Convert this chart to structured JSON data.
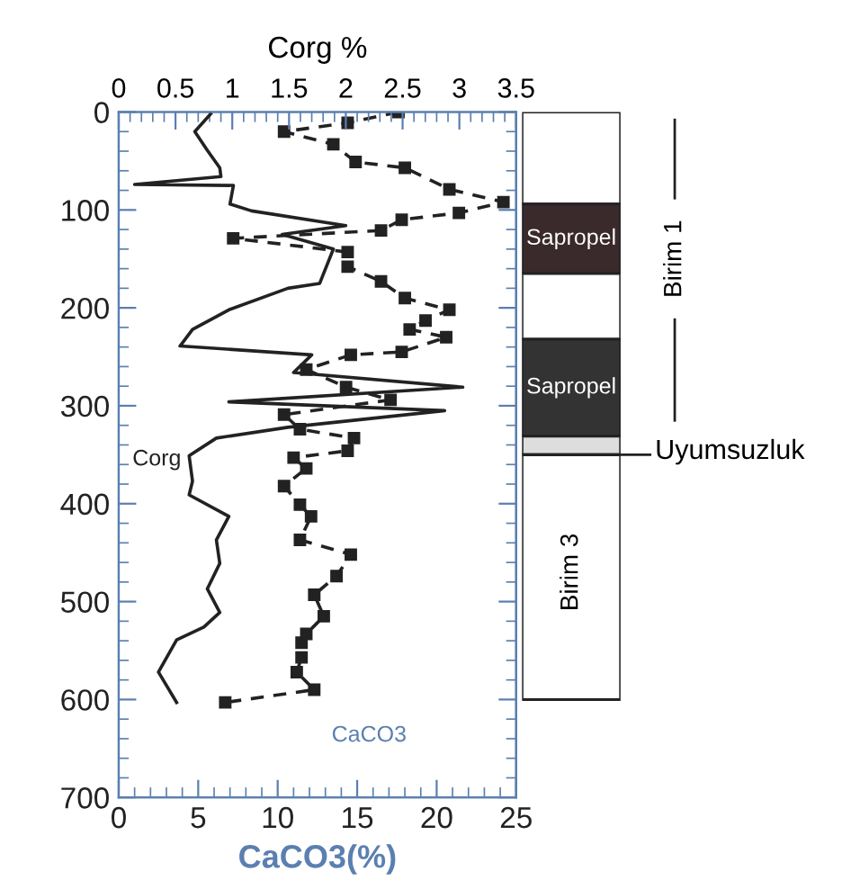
{
  "chart_data": [
    {
      "type": "line",
      "orientation": "horizontal",
      "xlabel": "CaCO3(%)",
      "x2label": "Corg %",
      "xlim": [
        0,
        25
      ],
      "xticks": [
        0,
        5,
        10,
        15,
        20,
        25
      ],
      "x2lim": [
        0,
        3.5
      ],
      "x2ticks": [
        0,
        0.5,
        1,
        1.5,
        2,
        2.5,
        3,
        3.5
      ],
      "ylim": [
        700,
        0
      ],
      "yticks": [
        0,
        100,
        200,
        300,
        400,
        500,
        600,
        700
      ],
      "grid": false,
      "legend": false,
      "series": [
        {
          "name": "Corg",
          "axis": "x2",
          "color": "#222222",
          "line_style": "solid",
          "marker": "none",
          "x": [
            2,
            20,
            39,
            57,
            66,
            74,
            75,
            94,
            101,
            116,
            125,
            140,
            175,
            180,
            202,
            222,
            239,
            248,
            266,
            281,
            296,
            305,
            322,
            333,
            351,
            377,
            391,
            413,
            437,
            461,
            487,
            511,
            526,
            539,
            572,
            603
          ],
          "values": [
            0.81,
            0.67,
            0.78,
            0.89,
            0.9,
            0.14,
            1.01,
            0.98,
            1.17,
            2.0,
            1.44,
            1.89,
            1.77,
            1.49,
            0.97,
            0.65,
            0.54,
            1.7,
            1.54,
            3.03,
            0.97,
            2.87,
            1.49,
            0.86,
            0.62,
            0.65,
            0.62,
            0.97,
            0.86,
            0.89,
            0.78,
            0.89,
            0.75,
            0.51,
            0.35,
            0.51
          ]
        },
        {
          "name": "CaCO3",
          "color": "#222222",
          "line_style": "dashed",
          "marker": "square",
          "x": [
            0,
            11,
            20,
            33,
            51,
            57,
            79,
            92,
            103,
            110,
            121,
            129,
            143,
            158,
            173,
            190,
            202,
            213,
            222,
            230,
            245,
            248,
            263,
            281,
            294,
            309,
            324,
            333,
            346,
            353,
            364,
            382,
            401,
            413,
            437,
            452,
            474,
            493,
            515,
            533,
            542,
            557,
            572,
            590,
            603
          ],
          "values": [
            17.6,
            14.4,
            10.4,
            13.5,
            14.9,
            18.0,
            20.8,
            24.2,
            21.4,
            17.8,
            16.5,
            7.2,
            14.4,
            14.4,
            16.5,
            18.0,
            20.8,
            19.3,
            18.3,
            20.6,
            17.8,
            14.6,
            11.8,
            14.3,
            17.1,
            10.4,
            11.4,
            14.8,
            14.4,
            11.0,
            11.8,
            10.4,
            11.4,
            12.1,
            11.4,
            14.6,
            13.7,
            12.3,
            12.9,
            11.8,
            11.5,
            11.5,
            11.2,
            12.3,
            6.7
          ]
        }
      ]
    },
    {
      "type": "bar",
      "stacked": true,
      "categories": [
        null
      ],
      "ylim": [
        700,
        0
      ],
      "tick_labels": false,
      "series": [
        {
          "color": "#ffffff",
          "values": [
            94
          ]
        },
        {
          "name": "Sapropel",
          "color": "#3a2a2c",
          "values": [
            71
          ]
        },
        {
          "color": "#ffffff",
          "values": [
            67
          ]
        },
        {
          "name": "Sapropel",
          "color": "#333333",
          "values": [
            99
          ]
        },
        {
          "color": "#dddddd",
          "values": [
            19
          ]
        },
        {
          "color": "#ffffff",
          "values": [
            250
          ]
        }
      ],
      "annotations": [
        "Birim 1",
        "Uyumsuzluk",
        "Birim 3"
      ]
    }
  ]
}
